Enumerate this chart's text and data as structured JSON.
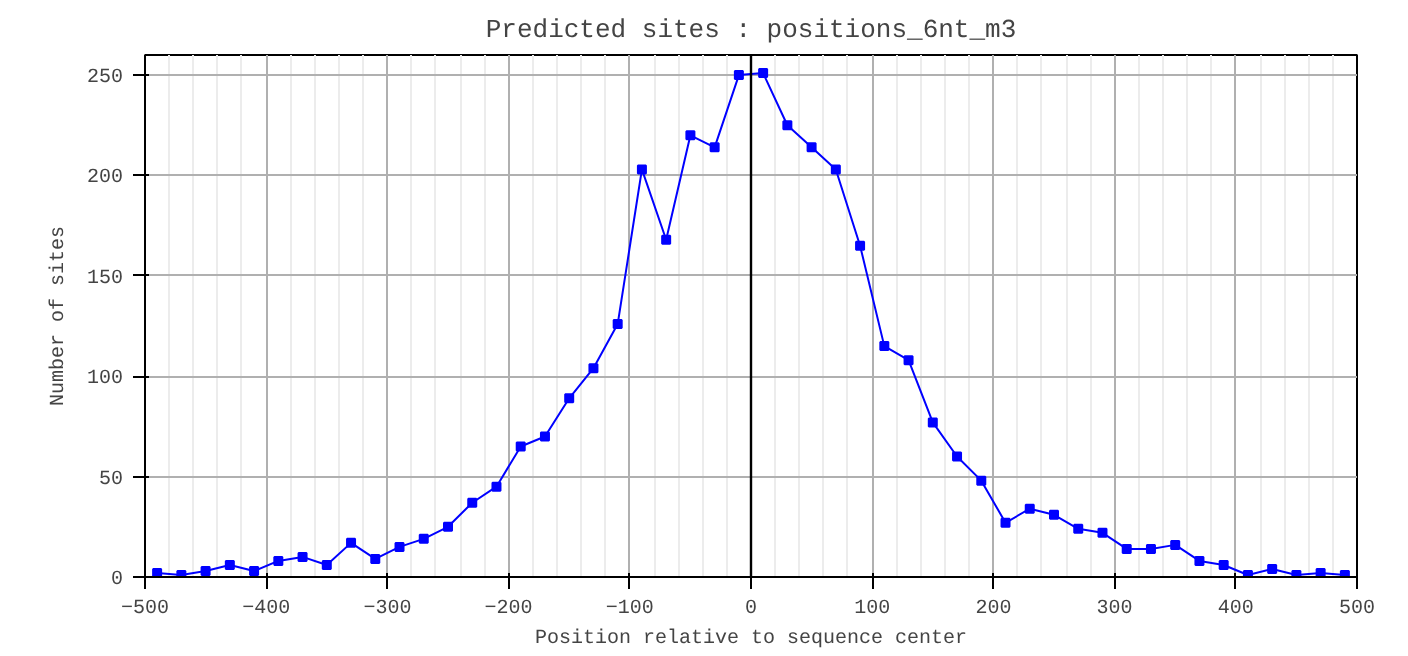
{
  "chart_data": {
    "type": "line",
    "title": "Predicted sites : positions_6nt_m3",
    "xlabel": "Position relative to sequence center",
    "ylabel": "Number of sites",
    "x": [
      -490,
      -470,
      -450,
      -430,
      -410,
      -390,
      -370,
      -350,
      -330,
      -310,
      -290,
      -270,
      -250,
      -230,
      -210,
      -190,
      -170,
      -150,
      -130,
      -110,
      -90,
      -70,
      -50,
      -30,
      -10,
      10,
      30,
      50,
      70,
      90,
      110,
      130,
      150,
      170,
      190,
      210,
      230,
      250,
      270,
      290,
      310,
      330,
      350,
      370,
      390,
      410,
      430,
      450,
      470,
      490
    ],
    "series": [
      {
        "color": "#0000ff",
        "values": [
          2,
          1,
          3,
          6,
          3,
          8,
          10,
          6,
          17,
          9,
          15,
          19,
          25,
          37,
          45,
          65,
          70,
          89,
          104,
          126,
          203,
          168,
          220,
          214,
          250,
          251,
          225,
          214,
          203,
          165,
          115,
          108,
          77,
          60,
          48,
          27,
          34,
          31,
          24,
          22,
          14,
          14,
          16,
          8,
          6,
          1,
          4,
          1,
          2,
          1
        ]
      }
    ],
    "xlim": [
      -500,
      500
    ],
    "ylim": [
      0,
      260
    ],
    "xticks": [
      -500,
      -400,
      -300,
      -200,
      -100,
      0,
      100,
      200,
      300,
      400,
      500
    ],
    "yticks": [
      0,
      50,
      100,
      150,
      200,
      250
    ],
    "ref_lines": [
      {
        "axis": "x",
        "value": 0,
        "color": "#000000"
      }
    ],
    "grid": true,
    "marker": "square",
    "line_style": "solid"
  }
}
